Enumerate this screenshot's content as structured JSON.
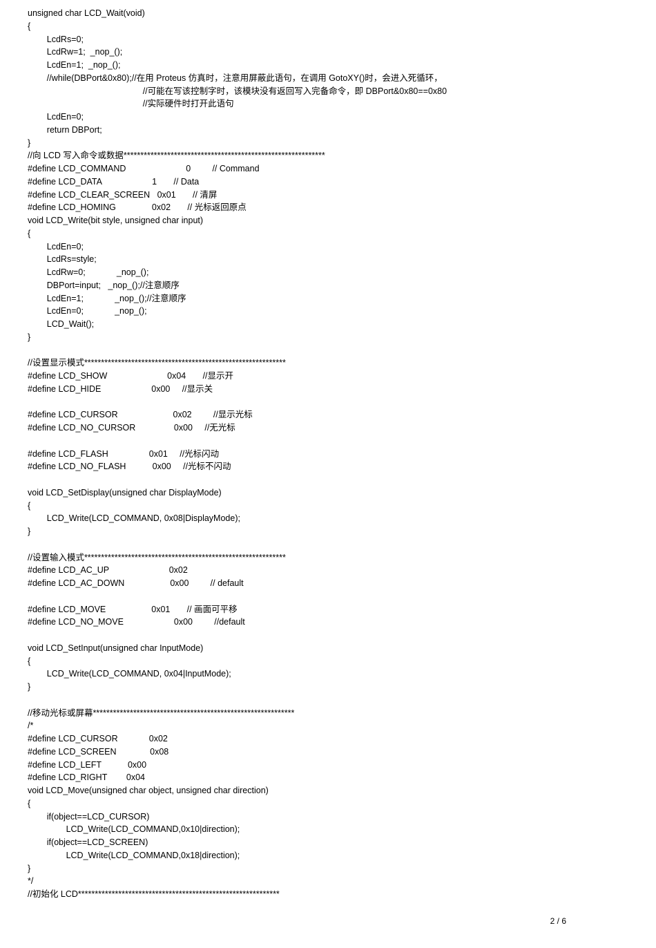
{
  "page": {
    "number": "2 / 6"
  },
  "code": {
    "block1": "unsigned char LCD_Wait(void)\n{\n        LcdRs=0;\n        LcdRw=1;  _nop_();\n        LcdEn=1;  _nop_();\n        //while(DBPort&0x80);//在用 Proteus 仿真时，注意用屏蔽此语句，在调用 GotoXY()时，会进入死循环，\n                                                //可能在写该控制字时，该模块没有返回写入完备命令，即 DBPort&0x80==0x80\n                                                //实际硬件时打开此语句\n        LcdEn=0;\n        return DBPort;\n}\n//向 LCD 写入命令或数据************************************************************\n#define LCD_COMMAND                         0         // Command\n#define LCD_DATA                     1       // Data\n#define LCD_CLEAR_SCREEN   0x01       // 清屏\n#define LCD_HOMING               0x02       // 光标返回原点\nvoid LCD_Write(bit style, unsigned char input)\n{\n        LcdEn=0;\n        LcdRs=style;\n        LcdRw=0;             _nop_();\n        DBPort=input;   _nop_();//注意顺序\n        LcdEn=1;             _nop_();//注意顺序\n        LcdEn=0;             _nop_();\n        LCD_Wait();\n}\n\n//设置显示模式************************************************************\n#define LCD_SHOW                         0x04       //显示开\n#define LCD_HIDE                     0x00     //显示关\n\n#define LCD_CURSOR                       0x02         //显示光标\n#define LCD_NO_CURSOR                0x00     //无光标\n\n#define LCD_FLASH                 0x01     //光标闪动\n#define LCD_NO_FLASH           0x00     //光标不闪动\n\nvoid LCD_SetDisplay(unsigned char DisplayMode)\n{\n        LCD_Write(LCD_COMMAND, 0x08|DisplayMode);\n}\n\n//设置输入模式************************************************************\n#define LCD_AC_UP                         0x02\n#define LCD_AC_DOWN                   0x00         // default\n\n#define LCD_MOVE                   0x01       // 画面可平移\n#define LCD_NO_MOVE                     0x00         //default\n\nvoid LCD_SetInput(unsigned char InputMode)\n{\n        LCD_Write(LCD_COMMAND, 0x04|InputMode);\n}\n\n//移动光标或屏幕************************************************************\n/*\n#define LCD_CURSOR             0x02\n#define LCD_SCREEN              0x08\n#define LCD_LEFT           0x00\n#define LCD_RIGHT        0x04\nvoid LCD_Move(unsigned char object, unsigned char direction)\n{\n        if(object==LCD_CURSOR)\n                LCD_Write(LCD_COMMAND,0x10|direction);\n        if(object==LCD_SCREEN)\n                LCD_Write(LCD_COMMAND,0x18|direction);\n}\n*/\n//初始化 LCD************************************************************"
  }
}
